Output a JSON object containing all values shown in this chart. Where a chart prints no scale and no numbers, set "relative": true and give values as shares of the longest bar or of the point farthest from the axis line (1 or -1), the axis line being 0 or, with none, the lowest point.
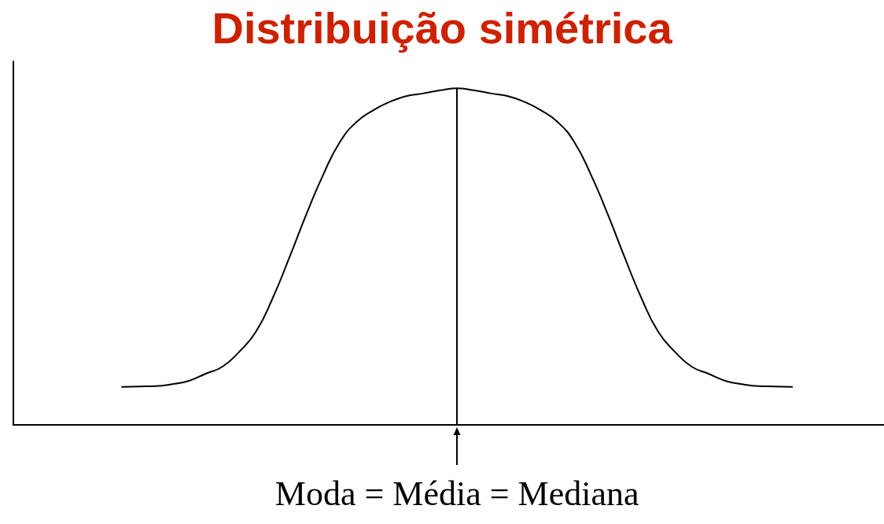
{
  "chart_data": {
    "type": "line",
    "title": "Distribuição simétrica",
    "categories": [
      null,
      null,
      null,
      null,
      null,
      null,
      null,
      null,
      null,
      null,
      null,
      null,
      null,
      null,
      null,
      null,
      null,
      null,
      null,
      null,
      null,
      null,
      null,
      null,
      null,
      null,
      null,
      null,
      null,
      null,
      null,
      null,
      null,
      null,
      null,
      null,
      null,
      null,
      null,
      null,
      null
    ],
    "series": [
      {
        "color": "#000000",
        "values": [
          0.113,
          0.114,
          0.115,
          0.121,
          0.131,
          0.152,
          0.173,
          0.217,
          0.277,
          0.377,
          0.498,
          0.625,
          0.742,
          0.84,
          0.9,
          0.935,
          0.96,
          0.977,
          0.985,
          0.994,
          1,
          0.994,
          0.985,
          0.977,
          0.96,
          0.935,
          0.9,
          0.84,
          0.742,
          0.625,
          0.498,
          0.377,
          0.277,
          0.217,
          0.173,
          0.152,
          0.131,
          0.121,
          0.115,
          0.114,
          0.113
        ]
      }
    ],
    "relative": true,
    "annotations": [
      "Moda = Média = Mediana"
    ]
  }
}
